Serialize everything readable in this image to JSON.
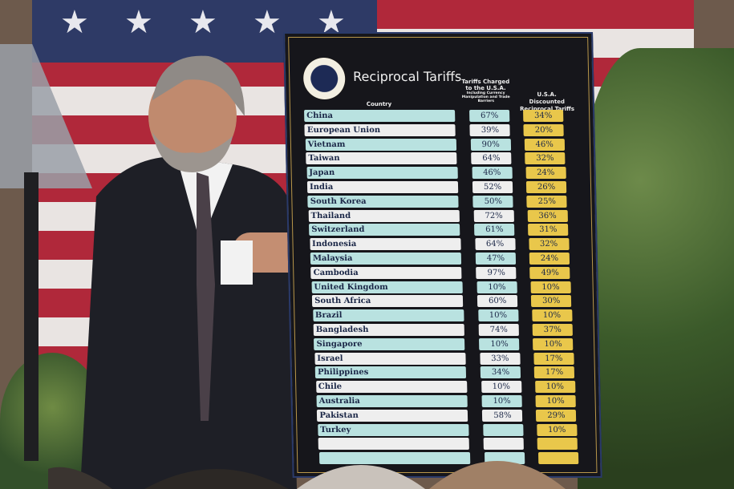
{
  "board": {
    "title": "Reciprocal Tariffs",
    "seal_text": "Seal of the President of the United States",
    "col_country": "Country",
    "col_charged": "Tariffs Charged to the U.S.A.",
    "col_charged_sub": "Including Currency Manipulation and Trade Barriers",
    "col_discount": "U.S.A. Discounted Reciprocal Tariffs",
    "rows": [
      {
        "country": "China",
        "charged": "67%",
        "discounted": "34%"
      },
      {
        "country": "European Union",
        "charged": "39%",
        "discounted": "20%"
      },
      {
        "country": "Vietnam",
        "charged": "90%",
        "discounted": "46%"
      },
      {
        "country": "Taiwan",
        "charged": "64%",
        "discounted": "32%"
      },
      {
        "country": "Japan",
        "charged": "46%",
        "discounted": "24%"
      },
      {
        "country": "India",
        "charged": "52%",
        "discounted": "26%"
      },
      {
        "country": "South Korea",
        "charged": "50%",
        "discounted": "25%"
      },
      {
        "country": "Thailand",
        "charged": "72%",
        "discounted": "36%"
      },
      {
        "country": "Switzerland",
        "charged": "61%",
        "discounted": "31%"
      },
      {
        "country": "Indonesia",
        "charged": "64%",
        "discounted": "32%"
      },
      {
        "country": "Malaysia",
        "charged": "47%",
        "discounted": "24%"
      },
      {
        "country": "Cambodia",
        "charged": "97%",
        "discounted": "49%"
      },
      {
        "country": "United Kingdom",
        "charged": "10%",
        "discounted": "10%"
      },
      {
        "country": "South Africa",
        "charged": "60%",
        "discounted": "30%"
      },
      {
        "country": "Brazil",
        "charged": "10%",
        "discounted": "10%"
      },
      {
        "country": "Bangladesh",
        "charged": "74%",
        "discounted": "37%"
      },
      {
        "country": "Singapore",
        "charged": "10%",
        "discounted": "10%"
      },
      {
        "country": "Israel",
        "charged": "33%",
        "discounted": "17%"
      },
      {
        "country": "Philippines",
        "charged": "34%",
        "discounted": "17%"
      },
      {
        "country": "Chile",
        "charged": "10%",
        "discounted": "10%"
      },
      {
        "country": "Australia",
        "charged": "10%",
        "discounted": "10%"
      },
      {
        "country": "Pakistan",
        "charged": "58%",
        "discounted": "29%"
      },
      {
        "country": "Turkey",
        "charged": "",
        "discounted": "10%"
      },
      {
        "country": "",
        "charged": "",
        "discounted": ""
      },
      {
        "country": "",
        "charged": "",
        "discounted": ""
      }
    ]
  },
  "colors": {
    "teal_row": "#b9e2e0",
    "white_row": "#eeeeee",
    "yellow_cell": "#e9c74b",
    "board_bg": "#16161b",
    "flag_red": "#b0283a",
    "flag_blue": "#2e3a66"
  }
}
